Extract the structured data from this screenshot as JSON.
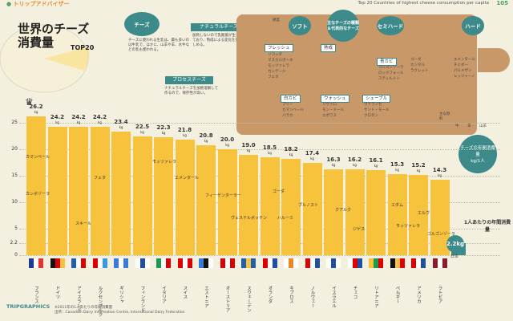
{
  "header": {
    "brand": "トリップアドバイザー",
    "title": "Top 20 Countries of highest cheese consumption per capita",
    "page_number": "105"
  },
  "main_title": "世界のチーズ消費量",
  "main_title_badge": "TOP20",
  "diagram": {
    "root": "チーズ",
    "root_desc": "チーズに使われる生乳は、最も多いのは牛乳で、ほかに、山羊や羊、水牛などの乳も使われる。",
    "natural": "ナチュラルチーズ",
    "natural_desc": "加熱しないので乳酸菌が生きており、熟成による変化を楽しめる。",
    "process": "プロセスチーズ",
    "process_desc": "ナチュラルチーズを加熱溶解して作るので、保存性が高い。",
    "type_center": "主なチーズの種類＆代表的なチーズ",
    "soft": "ソフト",
    "semi_hard": "セミハード",
    "hard": "ハード",
    "hardness": "硬度",
    "fresh": "フレッシュ",
    "fresh_items": [
      "リコッタ",
      "マスカルポーネ",
      "モッツァレラ",
      "カッテージ",
      "フェタ"
    ],
    "aged": "熟成",
    "white_mold": "白カビ",
    "white_mold_items": [
      "ブリー",
      "カマンベール",
      "バラカ"
    ],
    "washed": "ウォッシュ",
    "washed_items": [
      "リヴァロ",
      "モン・ドール",
      "エポワス"
    ],
    "chevre": "シェーブル",
    "chevre_items": [
      "ヴァランセ",
      "サント・モール",
      "クロタン"
    ],
    "blue_mold": "青カビ",
    "blue_mold_items": [
      "ゴルゴンゾーラ",
      "ロックフォール",
      "スティルトン"
    ],
    "semi_items": [
      "ゴーダ",
      "カンタル",
      "ラクレット"
    ],
    "hard_items": [
      "エメンタール",
      "チェダー",
      "パルメザン",
      "レッジャーノ"
    ],
    "raw_milk": "主な原料",
    "milk_types": [
      "牛",
      "羊",
      "山羊"
    ]
  },
  "annual_consumption": {
    "label": "チーズの年間消費量",
    "unit": "kg/1人",
    "japan_value": "2.2",
    "japan_unit": "kg",
    "japan_name": "日本",
    "person_caption": "1人あたりの年間消費量"
  },
  "chart_data": {
    "type": "bar",
    "title": "世界のチーズ消費量",
    "ylabel": "kg",
    "ylim": [
      0,
      27
    ],
    "yticks": [
      "0",
      "2.2",
      "5",
      "10",
      "15",
      "20",
      "25"
    ],
    "unit": "kg",
    "categories": [
      "フランス",
      "ドイツ",
      "アイスランド",
      "ルクセンブルク",
      "ギリシャ",
      "フィンランド",
      "イタリア",
      "スイス",
      "エストニア",
      "オーストリア",
      "スウェーデン",
      "オランダ",
      "キプロス",
      "ノルウェー",
      "イスラエル",
      "チェコ",
      "リトアニア",
      "ベルギー",
      "アメリカ",
      "ラトビア"
    ],
    "values": [
      26.2,
      24.2,
      24.2,
      24.2,
      23.4,
      22.5,
      22.3,
      21.8,
      20.8,
      20.0,
      19.0,
      18.5,
      18.2,
      17.4,
      16.3,
      16.2,
      16.1,
      15.3,
      15.2,
      14.3
    ],
    "reference": {
      "name": "日本",
      "value": 2.2
    },
    "cheeses": [
      "カマンベール",
      "カンボゾーラ",
      "スキール",
      "フェタ",
      "モッツァレラ",
      "エメンタール",
      "フィーゲンターラー",
      "ヴェステルボッテン",
      "ゴーダ",
      "ハルーミ",
      "ブルノスト",
      "クアルク",
      "ジゲス",
      "エダム",
      "モッツァレラ",
      "エルヴ",
      "ゴルゴンゾーラ"
    ]
  },
  "footer": {
    "brand": "TRIPGRAPHICS",
    "note1": "出所：Canadian Dairy Information Centre, International Dairy Federation",
    "note2": "※2011年の1人あたりの年間消費量"
  },
  "colors": {
    "bar": "#f7c23c",
    "teal": "#3c8a8a",
    "board": "#c89868",
    "background": "#f4f0e0"
  }
}
